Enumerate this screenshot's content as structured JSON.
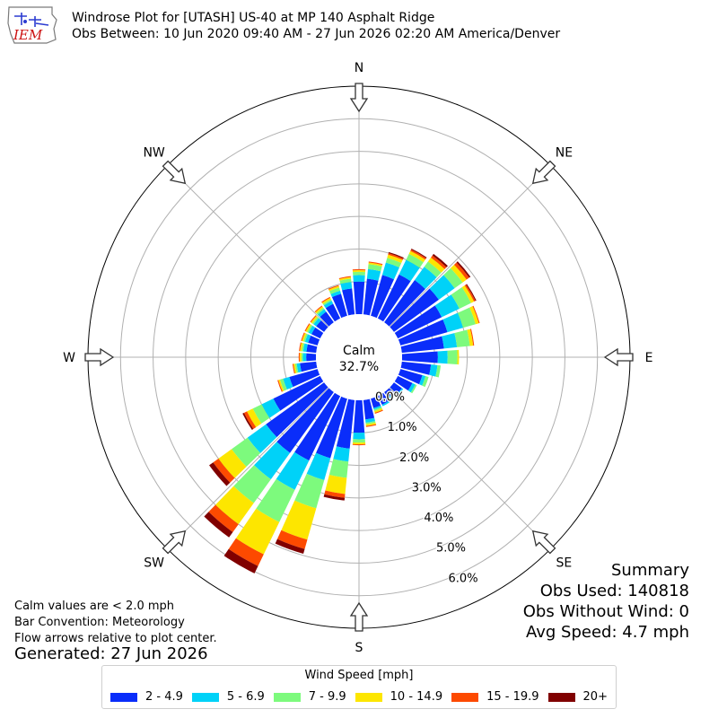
{
  "header": {
    "title": "Windrose Plot for [UTASH] US-40 at MP 140 Asphalt Ridge",
    "subtitle": "Obs Between: 10 Jun 2020 09:40 AM - 27 Jun 2026 02:20 AM America/Denver",
    "logo_text": "IEM"
  },
  "summary": {
    "heading": "Summary",
    "obs_used": "Obs Used: 140818",
    "obs_without_wind": "Obs Without Wind: 0",
    "avg_speed": "Avg Speed: 4.7 mph"
  },
  "notes": {
    "calm_note": "Calm values are < 2.0 mph",
    "bar_convention": "Bar Convention: Meteorology",
    "flow_arrows": "Flow arrows relative to plot center.",
    "generated": "Generated: 27 Jun 2026"
  },
  "legend": {
    "title": "Wind Speed [mph]",
    "items": [
      {
        "label": "2 - 4.9",
        "color": "#0a2dfa"
      },
      {
        "label": "5 - 6.9",
        "color": "#00d2f8"
      },
      {
        "label": "7 - 9.9",
        "color": "#7dfa7d"
      },
      {
        "label": "10 - 14.9",
        "color": "#fde600"
      },
      {
        "label": "15 - 19.9",
        "color": "#fd4a00"
      },
      {
        "label": "20+",
        "color": "#800000"
      }
    ]
  },
  "chart_data": {
    "type": "windrose",
    "calm_label": "Calm",
    "calm_value": "32.7%",
    "compass": [
      "N",
      "NE",
      "E",
      "SE",
      "S",
      "SW",
      "W",
      "NW"
    ],
    "radial_labels": [
      "0.0%",
      "1.0%",
      "2.0%",
      "3.0%",
      "4.0%",
      "5.0%",
      "6.0%"
    ],
    "bin_names": [
      "2 - 4.9",
      "5 - 6.9",
      "7 - 9.9",
      "10 - 14.9",
      "15 - 19.9",
      "20+"
    ],
    "directions": [
      0,
      10,
      20,
      30,
      40,
      50,
      60,
      70,
      80,
      90,
      100,
      110,
      120,
      130,
      140,
      150,
      160,
      170,
      180,
      190,
      200,
      210,
      220,
      230,
      240,
      250,
      260,
      270,
      280,
      290,
      300,
      310,
      320,
      330,
      340,
      350
    ],
    "bins": [
      [
        1.0,
        1.1,
        1.3,
        1.5,
        1.6,
        1.7,
        1.5,
        1.5,
        1.3,
        1.1,
        0.9,
        0.7,
        0.5,
        0.3,
        0.2,
        0.3,
        0.3,
        0.6,
        1.0,
        1.5,
        1.9,
        2.2,
        2.3,
        2.2,
        1.6,
        0.9,
        0.5,
        0.3,
        0.3,
        0.3,
        0.3,
        0.3,
        0.4,
        0.5,
        0.7,
        0.8
      ],
      [
        0.2,
        0.3,
        0.4,
        0.5,
        0.5,
        0.6,
        0.6,
        0.5,
        0.4,
        0.3,
        0.2,
        0.1,
        0.1,
        0.05,
        0.05,
        0.05,
        0.05,
        0.1,
        0.2,
        0.4,
        0.7,
        1.0,
        1.0,
        0.7,
        0.4,
        0.2,
        0.1,
        0.1,
        0.1,
        0.1,
        0.1,
        0.1,
        0.1,
        0.1,
        0.1,
        0.2
      ],
      [
        0.1,
        0.15,
        0.15,
        0.2,
        0.2,
        0.3,
        0.4,
        0.4,
        0.4,
        0.3,
        0.1,
        0.1,
        0.05,
        0.0,
        0.0,
        0.0,
        0.05,
        0.05,
        0.1,
        0.5,
        0.9,
        1.1,
        0.9,
        0.6,
        0.3,
        0.1,
        0.05,
        0.05,
        0.05,
        0.05,
        0.05,
        0.05,
        0.05,
        0.05,
        0.1,
        0.1
      ],
      [
        0.05,
        0.05,
        0.1,
        0.1,
        0.15,
        0.15,
        0.1,
        0.1,
        0.1,
        0.05,
        0.0,
        0.0,
        0.0,
        0.0,
        0.0,
        0.0,
        0.05,
        0.05,
        0.05,
        0.5,
        1.0,
        1.1,
        0.8,
        0.5,
        0.2,
        0.05,
        0.05,
        0.05,
        0.05,
        0.05,
        0.05,
        0.05,
        0.05,
        0.05,
        0.05,
        0.05
      ],
      [
        0.03,
        0.03,
        0.05,
        0.05,
        0.08,
        0.1,
        0.05,
        0.03,
        0.03,
        0.0,
        0.0,
        0.0,
        0.0,
        0.0,
        0.0,
        0.0,
        0.03,
        0.03,
        0.03,
        0.12,
        0.3,
        0.4,
        0.3,
        0.2,
        0.1,
        0.03,
        0.03,
        0.03,
        0.03,
        0.03,
        0.03,
        0.03,
        0.03,
        0.03,
        0.03,
        0.03
      ],
      [
        0.0,
        0.0,
        0.03,
        0.03,
        0.06,
        0.05,
        0.03,
        0.0,
        0.0,
        0.0,
        0.0,
        0.0,
        0.0,
        0.0,
        0.0,
        0.0,
        0.0,
        0.0,
        0.0,
        0.08,
        0.15,
        0.25,
        0.2,
        0.15,
        0.05,
        0.0,
        0.0,
        0.0,
        0.0,
        0.0,
        0.0,
        0.0,
        0.0,
        0.0,
        0.0,
        0.0
      ]
    ],
    "rmax": 7.0,
    "grid": true
  }
}
